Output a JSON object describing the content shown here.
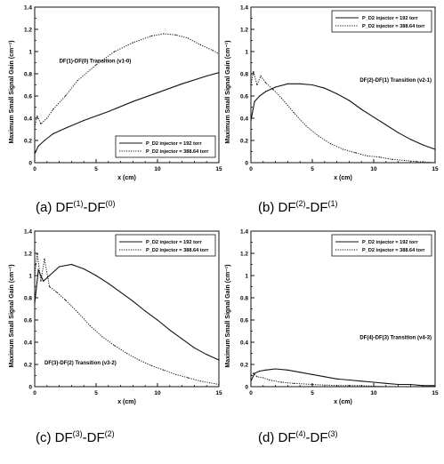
{
  "chart_data": [
    {
      "type": "line",
      "title": "DF(1)-DF(0) Transition (v1-0)",
      "ylabel": "Maximum Small Signal Gain (cm⁻¹)",
      "xlabel": "x (cm)",
      "xlim": [
        0,
        15
      ],
      "ylim": [
        0,
        1.4
      ],
      "xticks": [
        "0",
        "5",
        "10",
        "15"
      ],
      "yticks": [
        "0",
        "0.2",
        "0.4",
        "0.6",
        "0.8",
        "1",
        "1.2",
        "1.4"
      ],
      "legend_position": "bottom-right",
      "caption": {
        "prefix": "(a)",
        "upper": "DF",
        "upper_sup": "(1)",
        "dash": "-",
        "lower": "DF",
        "lower_sup": "(0)"
      },
      "series": [
        {
          "name": "P_D2 injector = 192 torr",
          "style": "solid",
          "x": [
            0,
            0.3,
            0.8,
            1.5,
            2.5,
            4,
            6,
            8,
            10,
            12,
            14,
            15
          ],
          "values": [
            0.08,
            0.15,
            0.2,
            0.26,
            0.31,
            0.38,
            0.46,
            0.55,
            0.63,
            0.71,
            0.78,
            0.81
          ]
        },
        {
          "name": "P_D2 injector = 388.64 torr",
          "style": "dotted",
          "x": [
            0,
            0.2,
            0.5,
            1,
            1.5,
            2.5,
            3.5,
            5,
            6.5,
            8,
            9.5,
            10.5,
            11.5,
            12.5,
            13.5,
            14.5,
            15
          ],
          "values": [
            0.32,
            0.42,
            0.35,
            0.4,
            0.48,
            0.6,
            0.74,
            0.88,
            1.0,
            1.08,
            1.14,
            1.16,
            1.15,
            1.12,
            1.06,
            1.01,
            0.98
          ]
        }
      ]
    },
    {
      "type": "line",
      "title": "DF(2)-DF(1) Transition (v2-1)",
      "ylabel": "Maximum Small Signal Gain (cm⁻¹)",
      "xlabel": "x (cm)",
      "xlim": [
        0,
        15
      ],
      "ylim": [
        0,
        1.4
      ],
      "xticks": [
        "0",
        "5",
        "10",
        "15"
      ],
      "yticks": [
        "0",
        "0.2",
        "0.4",
        "0.6",
        "0.8",
        "1",
        "1.2",
        "1.4"
      ],
      "legend_position": "top-right",
      "caption": {
        "prefix": "(b)",
        "upper": "DF",
        "upper_sup": "(2)",
        "dash": "-",
        "lower": "DF",
        "lower_sup": "(1)"
      },
      "series": [
        {
          "name": "P_D2 injector = 192 torr",
          "style": "solid",
          "x": [
            0,
            0.3,
            0.7,
            1.2,
            2,
            3,
            4,
            5,
            6,
            7,
            8,
            9,
            10,
            11,
            12,
            13,
            14,
            15
          ],
          "values": [
            0.38,
            0.55,
            0.6,
            0.64,
            0.68,
            0.71,
            0.71,
            0.7,
            0.67,
            0.62,
            0.56,
            0.48,
            0.41,
            0.34,
            0.27,
            0.21,
            0.16,
            0.12
          ]
        },
        {
          "name": "P_D2 injector = 388.64 torr",
          "style": "dotted",
          "x": [
            0,
            0.2,
            0.5,
            0.8,
            1.2,
            1.8,
            2.5,
            3.5,
            4.5,
            5.5,
            6.5,
            7.5,
            8.5,
            9.5,
            10.5,
            11.5,
            12.5,
            13.5,
            15
          ],
          "values": [
            0.7,
            0.82,
            0.7,
            0.78,
            0.72,
            0.66,
            0.58,
            0.45,
            0.33,
            0.24,
            0.17,
            0.12,
            0.09,
            0.06,
            0.05,
            0.03,
            0.02,
            0.01,
            0.0
          ]
        }
      ]
    },
    {
      "type": "line",
      "title": "DF(3)-DF(2) Transition (v3-2)",
      "ylabel": "Maximum Small Signal Gain (cm⁻¹)",
      "xlabel": "x (cm)",
      "xlim": [
        0,
        15
      ],
      "ylim": [
        0,
        1.4
      ],
      "xticks": [
        "0",
        "5",
        "10",
        "15"
      ],
      "yticks": [
        "0",
        "0.2",
        "0.4",
        "0.6",
        "0.8",
        "1",
        "1.2",
        "1.4"
      ],
      "legend_position": "top-right",
      "caption": {
        "prefix": "(c)",
        "upper": "DF",
        "upper_sup": "(3)",
        "dash": "-",
        "lower": "DF",
        "lower_sup": "(2)"
      },
      "series": [
        {
          "name": "P_D2 injector = 192 torr",
          "style": "solid",
          "x": [
            0,
            0.3,
            0.7,
            1.2,
            2,
            3,
            4,
            5,
            6,
            7,
            8,
            9,
            10,
            11,
            12,
            13,
            14,
            15
          ],
          "values": [
            0.75,
            1.05,
            0.95,
            1.0,
            1.08,
            1.1,
            1.06,
            1.0,
            0.93,
            0.85,
            0.77,
            0.68,
            0.6,
            0.51,
            0.43,
            0.35,
            0.29,
            0.24
          ]
        },
        {
          "name": "P_D2 injector = 388.64 torr",
          "style": "dotted",
          "x": [
            0,
            0.2,
            0.5,
            0.8,
            1.2,
            1.8,
            2.5,
            3.5,
            4.5,
            5.5,
            6.5,
            7.5,
            8.5,
            9.5,
            10.5,
            11.5,
            12.5,
            13.5,
            15
          ],
          "values": [
            1.0,
            1.2,
            0.95,
            1.15,
            0.9,
            0.85,
            0.78,
            0.67,
            0.55,
            0.45,
            0.37,
            0.3,
            0.24,
            0.19,
            0.15,
            0.11,
            0.08,
            0.05,
            0.02
          ]
        }
      ]
    },
    {
      "type": "line",
      "title": "DF(4)-DF(3) Transition (v4-3)",
      "ylabel": "Maximum Small Signal Gain (cm⁻¹)",
      "xlabel": "x (cm)",
      "xlim": [
        0,
        15
      ],
      "ylim": [
        0,
        1.4
      ],
      "xticks": [
        "0",
        "5",
        "10",
        "15"
      ],
      "yticks": [
        "0",
        "0.2",
        "0.4",
        "0.6",
        "0.8",
        "1",
        "1.2",
        "1.4"
      ],
      "legend_position": "top-right",
      "caption": {
        "prefix": "(d)",
        "upper": "DF",
        "upper_sup": "(4)",
        "dash": "-",
        "lower": "DF",
        "lower_sup": "(3)"
      },
      "series": [
        {
          "name": "P_D2 injector = 192 torr",
          "style": "solid",
          "x": [
            0,
            0.3,
            0.7,
            1.2,
            2,
            3,
            4,
            5,
            6,
            7,
            8,
            9,
            10,
            11,
            12,
            13,
            14,
            15
          ],
          "values": [
            0.05,
            0.12,
            0.14,
            0.15,
            0.16,
            0.15,
            0.13,
            0.11,
            0.09,
            0.07,
            0.06,
            0.05,
            0.04,
            0.03,
            0.02,
            0.02,
            0.01,
            0.01
          ]
        },
        {
          "name": "P_D2 injector = 388.64 torr",
          "style": "dotted",
          "x": [
            0,
            0.2,
            0.5,
            1,
            1.5,
            2.5,
            3.5,
            5,
            7,
            9,
            11,
            13,
            15
          ],
          "values": [
            0.1,
            0.12,
            0.09,
            0.08,
            0.06,
            0.04,
            0.03,
            0.02,
            0.01,
            0.01,
            0.0,
            0.0,
            0.0
          ]
        }
      ]
    }
  ]
}
